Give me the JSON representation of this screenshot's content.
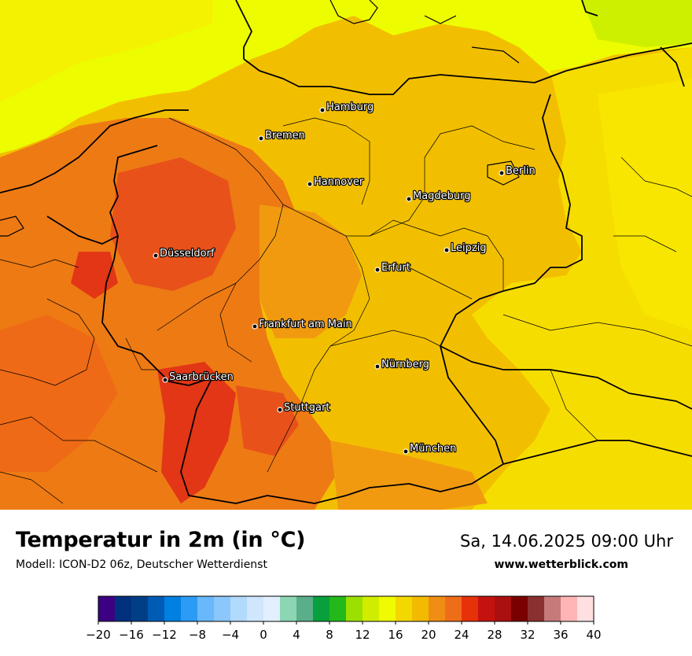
{
  "map": {
    "cities": [
      {
        "name": "Hamburg"
      },
      {
        "name": "Bremen"
      },
      {
        "name": "Berlin"
      },
      {
        "name": "Hannover"
      },
      {
        "name": "Magdeburg"
      },
      {
        "name": "Düsseldorf"
      },
      {
        "name": "Leipzig"
      },
      {
        "name": "Erfurt"
      },
      {
        "name": "Frankfurt am Main"
      },
      {
        "name": "Nürnberg"
      },
      {
        "name": "Saarbrücken"
      },
      {
        "name": "Stuttgart"
      },
      {
        "name": "München"
      }
    ]
  },
  "header": {
    "title": "Temperatur in 2m (in °C)",
    "model": "Modell: ICON-D2 06z, Deutscher Wetterdienst",
    "datetime": "Sa, 14.06.2025 09:00 Uhr",
    "site": "www.wetterblick.com"
  },
  "legend": {
    "tick_labels": [
      "−20",
      "−16",
      "−12",
      "−8",
      "−4",
      "0",
      "4",
      "8",
      "12",
      "16",
      "20",
      "24",
      "28",
      "32",
      "36",
      "40"
    ],
    "colors": [
      "#3c0082",
      "#00307e",
      "#003f85",
      "#005bb4",
      "#0080e0",
      "#2b9bf5",
      "#69b8fb",
      "#8bc7fb",
      "#b2dafc",
      "#cfe6fd",
      "#e2effe",
      "#8cd6b4",
      "#5aaf8a",
      "#07a03c",
      "#24b91a",
      "#9be000",
      "#d0ed00",
      "#f0fa00",
      "#f3d800",
      "#f2bb00",
      "#f08d14",
      "#ee6d18",
      "#e6310b",
      "#c4120f",
      "#aa1010",
      "#7a0000",
      "#8a3030",
      "#c67a7a",
      "#ffb5b5",
      "#ffe0e0"
    ]
  },
  "colors": {
    "land_base": "#f2bf00",
    "sea_north": "#eefc00",
    "sea_ne": "#cdf000",
    "west_warm": "#ee7a14",
    "hot": "#e8521a",
    "hotter": "#e23616",
    "south_east": "#f6dd00"
  }
}
